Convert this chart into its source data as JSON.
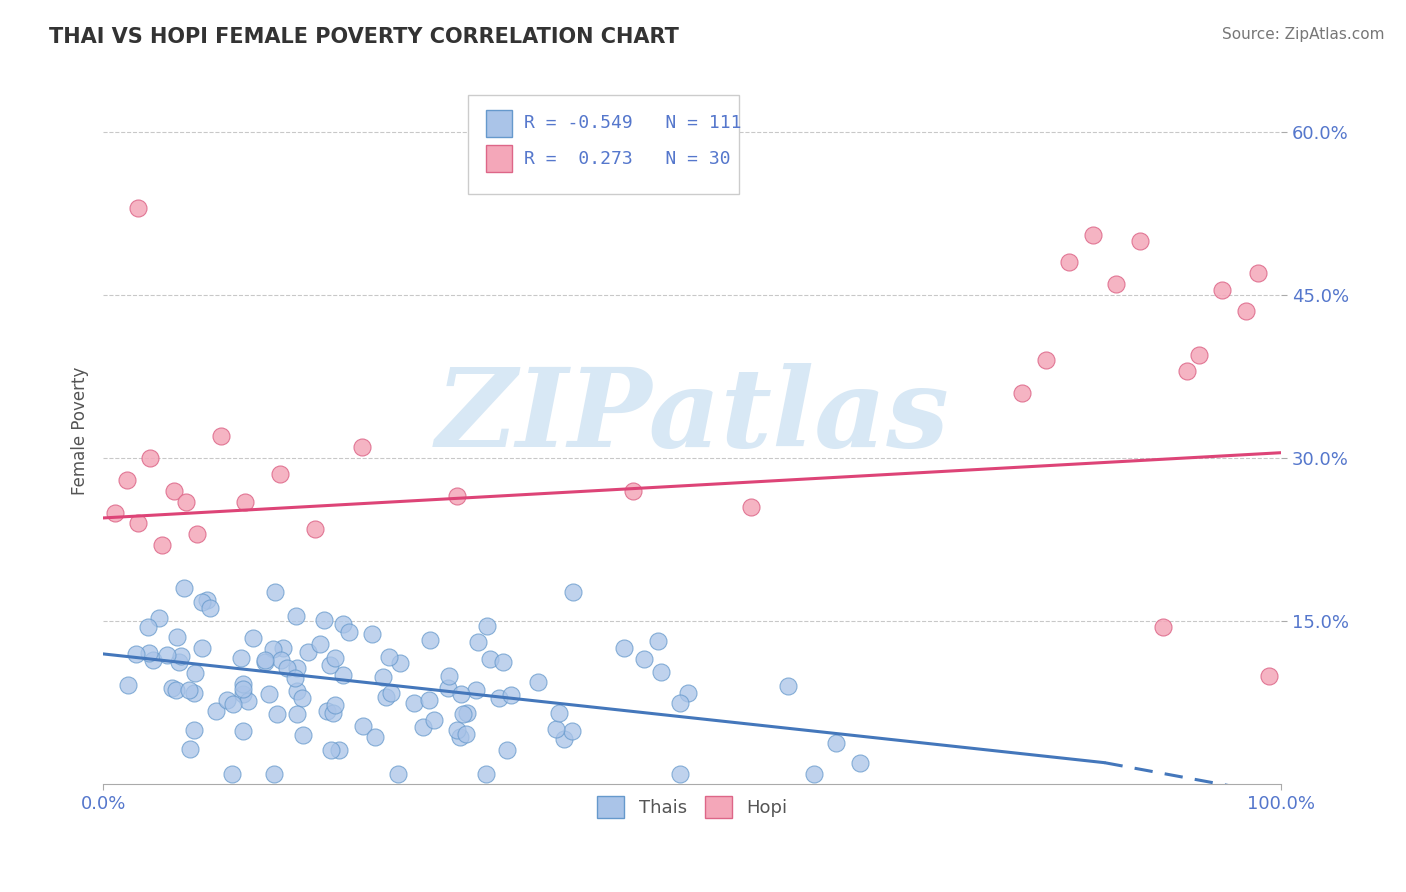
{
  "title": "THAI VS HOPI FEMALE POVERTY CORRELATION CHART",
  "source": "Source: ZipAtlas.com",
  "ylabel": "Female Poverty",
  "xlim": [
    0.0,
    1.0
  ],
  "ylim": [
    0.0,
    0.65
  ],
  "yticks": [
    0.15,
    0.3,
    0.45,
    0.6
  ],
  "ytick_labels": [
    "15.0%",
    "30.0%",
    "45.0%",
    "60.0%"
  ],
  "xticks": [
    0.0,
    1.0
  ],
  "xtick_labels": [
    "0.0%",
    "100.0%"
  ],
  "thai_R": -0.549,
  "thai_N": 111,
  "hopi_R": 0.273,
  "hopi_N": 30,
  "thai_color": "#aac4e8",
  "hopi_color": "#f4a7b9",
  "thai_edge_color": "#6699cc",
  "hopi_edge_color": "#dd6688",
  "thai_line_color": "#4477bb",
  "hopi_line_color": "#dd4477",
  "background_color": "#ffffff",
  "grid_color": "#bbbbbb",
  "title_color": "#333333",
  "source_color": "#777777",
  "watermark_text": "ZIPatlas",
  "watermark_color": "#d8e8f5",
  "tick_label_color": "#5577cc",
  "legend_text_color": "#5577cc",
  "thai_line_x0": 0.0,
  "thai_line_y0": 0.12,
  "thai_line_x1": 0.85,
  "thai_line_y1": 0.02,
  "thai_line_x1_dash": 1.0,
  "thai_line_y1_dash": -0.01,
  "hopi_line_x0": 0.0,
  "hopi_line_y0": 0.245,
  "hopi_line_x1": 1.0,
  "hopi_line_y1": 0.305
}
